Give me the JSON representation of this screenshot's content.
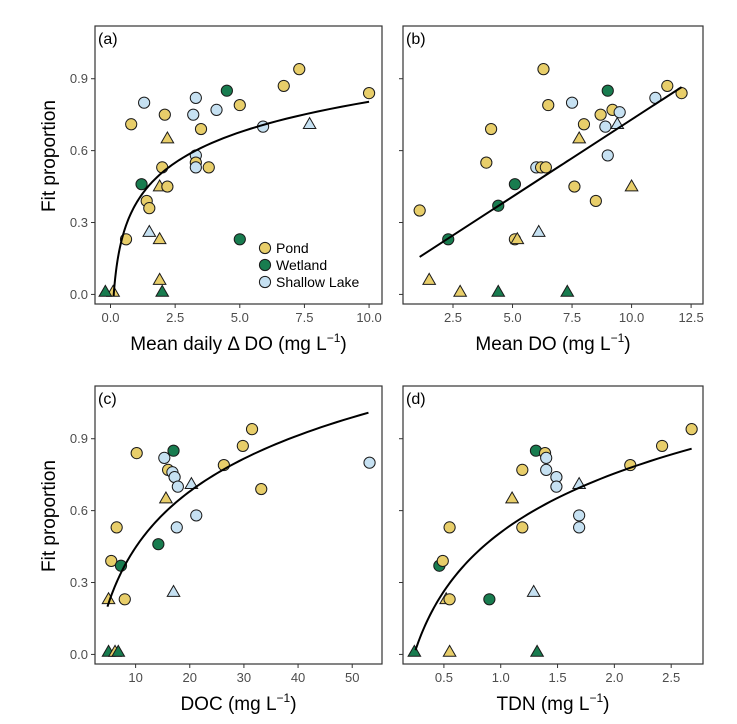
{
  "figure": {
    "shared_ylabel": "Fit proportion",
    "colors": {
      "Pond": "#E8CE6A",
      "Wetland": "#187C4F",
      "Shallow Lake": "#C6E1F2",
      "stroke": "#1a1a1a",
      "fit": "#000000"
    }
  },
  "legend": {
    "entries": [
      "Pond",
      "Wetland",
      "Shallow Lake"
    ]
  },
  "chart_data": [
    {
      "type": "scatter",
      "panel": "(a)",
      "xlabel_main": "Mean daily Δ DO (mg L",
      "xlabel_sup": "−1",
      "xlabel_end": ")",
      "ylabel": "Fit proportion",
      "xlim": [
        -0.6,
        10.5
      ],
      "ylim": [
        -0.04,
        1.12
      ],
      "xticks": [
        0.0,
        2.5,
        5.0,
        7.5,
        10.0
      ],
      "xtick_labels": [
        "0.0",
        "2.5",
        "5.0",
        "7.5",
        "10.0"
      ],
      "yticks": [
        0.0,
        0.3,
        0.6,
        0.9
      ],
      "ytick_labels": [
        "0.0",
        "0.3",
        "0.6",
        "0.9"
      ],
      "fit": {
        "type": "log",
        "x_start": 0.12,
        "x_end": 10.0,
        "a": 0.0,
        "b": 0.1
      },
      "points": [
        {
          "x": 0.6,
          "y": 0.23,
          "g": "Pond",
          "s": "circle"
        },
        {
          "x": 0.8,
          "y": 0.71,
          "g": "Pond",
          "s": "circle"
        },
        {
          "x": 1.3,
          "y": 0.8,
          "g": "Shallow Lake",
          "s": "circle"
        },
        {
          "x": 1.4,
          "y": 0.39,
          "g": "Pond",
          "s": "circle"
        },
        {
          "x": 1.5,
          "y": 0.36,
          "g": "Pond",
          "s": "circle"
        },
        {
          "x": 1.2,
          "y": 0.46,
          "g": "Wetland",
          "s": "circle"
        },
        {
          "x": 1.5,
          "y": 0.26,
          "g": "Shallow Lake",
          "s": "triangle"
        },
        {
          "x": 1.9,
          "y": 0.23,
          "g": "Pond",
          "s": "triangle"
        },
        {
          "x": 1.9,
          "y": 0.45,
          "g": "Pond",
          "s": "triangle"
        },
        {
          "x": 2.0,
          "y": 0.53,
          "g": "Pond",
          "s": "circle"
        },
        {
          "x": 2.1,
          "y": 0.75,
          "g": "Pond",
          "s": "circle"
        },
        {
          "x": 2.2,
          "y": 0.65,
          "g": "Pond",
          "s": "triangle"
        },
        {
          "x": 2.2,
          "y": 0.45,
          "g": "Pond",
          "s": "circle"
        },
        {
          "x": 1.9,
          "y": 0.06,
          "g": "Pond",
          "s": "triangle"
        },
        {
          "x": 2.0,
          "y": 0.01,
          "g": "Wetland",
          "s": "triangle"
        },
        {
          "x": 0.1,
          "y": 0.01,
          "g": "Pond",
          "s": "triangle"
        },
        {
          "x": -0.2,
          "y": 0.01,
          "g": "Wetland",
          "s": "triangle"
        },
        {
          "x": 3.2,
          "y": 0.75,
          "g": "Shallow Lake",
          "s": "circle"
        },
        {
          "x": 3.3,
          "y": 0.82,
          "g": "Shallow Lake",
          "s": "circle"
        },
        {
          "x": 3.3,
          "y": 0.58,
          "g": "Shallow Lake",
          "s": "circle"
        },
        {
          "x": 3.3,
          "y": 0.55,
          "g": "Pond",
          "s": "circle"
        },
        {
          "x": 3.3,
          "y": 0.53,
          "g": "Shallow Lake",
          "s": "circle"
        },
        {
          "x": 3.5,
          "y": 0.69,
          "g": "Pond",
          "s": "circle"
        },
        {
          "x": 3.8,
          "y": 0.53,
          "g": "Pond",
          "s": "circle"
        },
        {
          "x": 4.1,
          "y": 0.77,
          "g": "Shallow Lake",
          "s": "circle"
        },
        {
          "x": 4.5,
          "y": 0.85,
          "g": "Wetland",
          "s": "circle"
        },
        {
          "x": 5.0,
          "y": 0.79,
          "g": "Pond",
          "s": "circle"
        },
        {
          "x": 5.0,
          "y": 0.23,
          "g": "Wetland",
          "s": "circle"
        },
        {
          "x": 5.9,
          "y": 0.7,
          "g": "Shallow Lake",
          "s": "circle"
        },
        {
          "x": 6.7,
          "y": 0.87,
          "g": "Pond",
          "s": "circle"
        },
        {
          "x": 7.3,
          "y": 0.94,
          "g": "Pond",
          "s": "circle"
        },
        {
          "x": 7.7,
          "y": 0.71,
          "g": "Shallow Lake",
          "s": "triangle"
        },
        {
          "x": 10.0,
          "y": 0.84,
          "g": "Pond",
          "s": "circle"
        }
      ]
    },
    {
      "type": "scatter",
      "panel": "(b)",
      "xlabel_main": "Mean DO (mg L",
      "xlabel_sup": "−1",
      "xlabel_end": ")",
      "ylabel": "",
      "xlim": [
        0.4,
        13.0
      ],
      "ylim": [
        -0.04,
        1.12
      ],
      "xticks": [
        2.5,
        5.0,
        7.5,
        10.0,
        12.5
      ],
      "xtick_labels": [
        "2.5",
        "5.0",
        "7.5",
        "10.0",
        "12.5"
      ],
      "yticks": [
        0.0,
        0.3,
        0.6,
        0.9
      ],
      "ytick_labels": [
        "0.0",
        "0.3",
        "0.6",
        "0.9"
      ],
      "fit": {
        "type": "linear",
        "x_start": 1.1,
        "x_end": 12.1,
        "a": 0.0,
        "b": 0.0
      },
      "points": [
        {
          "x": 1.1,
          "y": 0.35,
          "g": "Pond",
          "s": "circle"
        },
        {
          "x": 1.5,
          "y": 0.06,
          "g": "Pond",
          "s": "triangle"
        },
        {
          "x": 2.3,
          "y": 0.23,
          "g": "Wetland",
          "s": "circle"
        },
        {
          "x": 2.8,
          "y": 0.01,
          "g": "Pond",
          "s": "triangle"
        },
        {
          "x": 3.9,
          "y": 0.55,
          "g": "Pond",
          "s": "circle"
        },
        {
          "x": 4.1,
          "y": 0.69,
          "g": "Pond",
          "s": "circle"
        },
        {
          "x": 4.4,
          "y": 0.37,
          "g": "Wetland",
          "s": "circle"
        },
        {
          "x": 4.4,
          "y": 0.01,
          "g": "Wetland",
          "s": "triangle"
        },
        {
          "x": 5.1,
          "y": 0.23,
          "g": "Pond",
          "s": "circle"
        },
        {
          "x": 5.2,
          "y": 0.23,
          "g": "Pond",
          "s": "triangle"
        },
        {
          "x": 5.1,
          "y": 0.46,
          "g": "Wetland",
          "s": "circle"
        },
        {
          "x": 6.0,
          "y": 0.53,
          "g": "Shallow Lake",
          "s": "circle"
        },
        {
          "x": 6.2,
          "y": 0.53,
          "g": "Pond",
          "s": "circle"
        },
        {
          "x": 6.4,
          "y": 0.53,
          "g": "Pond",
          "s": "circle"
        },
        {
          "x": 6.3,
          "y": 0.94,
          "g": "Pond",
          "s": "circle"
        },
        {
          "x": 6.5,
          "y": 0.79,
          "g": "Pond",
          "s": "circle"
        },
        {
          "x": 6.1,
          "y": 0.26,
          "g": "Shallow Lake",
          "s": "triangle"
        },
        {
          "x": 7.3,
          "y": 0.01,
          "g": "Wetland",
          "s": "triangle"
        },
        {
          "x": 7.5,
          "y": 0.8,
          "g": "Shallow Lake",
          "s": "circle"
        },
        {
          "x": 7.6,
          "y": 0.45,
          "g": "Pond",
          "s": "circle"
        },
        {
          "x": 7.8,
          "y": 0.65,
          "g": "Pond",
          "s": "triangle"
        },
        {
          "x": 8.0,
          "y": 0.71,
          "g": "Pond",
          "s": "circle"
        },
        {
          "x": 8.5,
          "y": 0.39,
          "g": "Pond",
          "s": "circle"
        },
        {
          "x": 8.7,
          "y": 0.75,
          "g": "Pond",
          "s": "circle"
        },
        {
          "x": 8.9,
          "y": 0.7,
          "g": "Shallow Lake",
          "s": "circle"
        },
        {
          "x": 9.0,
          "y": 0.58,
          "g": "Shallow Lake",
          "s": "circle"
        },
        {
          "x": 9.0,
          "y": 0.85,
          "g": "Wetland",
          "s": "circle"
        },
        {
          "x": 9.2,
          "y": 0.77,
          "g": "Pond",
          "s": "circle"
        },
        {
          "x": 9.5,
          "y": 0.76,
          "g": "Shallow Lake",
          "s": "circle"
        },
        {
          "x": 9.4,
          "y": 0.71,
          "g": "Shallow Lake",
          "s": "triangle"
        },
        {
          "x": 10.0,
          "y": 0.45,
          "g": "Pond",
          "s": "triangle"
        },
        {
          "x": 11.0,
          "y": 0.82,
          "g": "Shallow Lake",
          "s": "circle"
        },
        {
          "x": 11.5,
          "y": 0.87,
          "g": "Pond",
          "s": "circle"
        },
        {
          "x": 12.1,
          "y": 0.84,
          "g": "Pond",
          "s": "circle"
        }
      ]
    },
    {
      "type": "scatter",
      "panel": "(c)",
      "xlabel_main": "DOC (mg L",
      "xlabel_sup": "−1",
      "xlabel_end": ")",
      "ylabel": "Fit proportion",
      "xlim": [
        2.5,
        55.5
      ],
      "ylim": [
        -0.04,
        1.12
      ],
      "xticks": [
        10,
        20,
        30,
        40,
        50
      ],
      "xtick_labels": [
        "10",
        "20",
        "30",
        "40",
        "50"
      ],
      "yticks": [
        0.0,
        0.3,
        0.6,
        0.9
      ],
      "ytick_labels": [
        "0.0",
        "0.3",
        "0.6",
        "0.9"
      ],
      "fit": {
        "type": "log",
        "x_start": 4.8,
        "x_end": 53.0,
        "a": 0.0,
        "b": 0.0
      },
      "points": [
        {
          "x": 5.0,
          "y": 0.23,
          "g": "Pond",
          "s": "triangle"
        },
        {
          "x": 5.0,
          "y": 0.01,
          "g": "Wetland",
          "s": "triangle"
        },
        {
          "x": 5.5,
          "y": 0.39,
          "g": "Pond",
          "s": "circle"
        },
        {
          "x": 6.2,
          "y": 0.01,
          "g": "Pond",
          "s": "triangle"
        },
        {
          "x": 6.8,
          "y": 0.01,
          "g": "Wetland",
          "s": "triangle"
        },
        {
          "x": 6.5,
          "y": 0.53,
          "g": "Pond",
          "s": "circle"
        },
        {
          "x": 7.3,
          "y": 0.37,
          "g": "Wetland",
          "s": "circle"
        },
        {
          "x": 8.0,
          "y": 0.23,
          "g": "Pond",
          "s": "circle"
        },
        {
          "x": 10.2,
          "y": 0.84,
          "g": "Pond",
          "s": "circle"
        },
        {
          "x": 14.2,
          "y": 0.46,
          "g": "Wetland",
          "s": "circle"
        },
        {
          "x": 15.3,
          "y": 0.82,
          "g": "Shallow Lake",
          "s": "circle"
        },
        {
          "x": 15.6,
          "y": 0.65,
          "g": "Pond",
          "s": "triangle"
        },
        {
          "x": 16.0,
          "y": 0.77,
          "g": "Pond",
          "s": "circle"
        },
        {
          "x": 16.8,
          "y": 0.76,
          "g": "Shallow Lake",
          "s": "circle"
        },
        {
          "x": 17.0,
          "y": 0.85,
          "g": "Wetland",
          "s": "circle"
        },
        {
          "x": 17.2,
          "y": 0.74,
          "g": "Shallow Lake",
          "s": "circle"
        },
        {
          "x": 17.8,
          "y": 0.7,
          "g": "Shallow Lake",
          "s": "circle"
        },
        {
          "x": 17.0,
          "y": 0.26,
          "g": "Shallow Lake",
          "s": "triangle"
        },
        {
          "x": 17.6,
          "y": 0.53,
          "g": "Shallow Lake",
          "s": "circle"
        },
        {
          "x": 20.3,
          "y": 0.71,
          "g": "Shallow Lake",
          "s": "triangle"
        },
        {
          "x": 21.2,
          "y": 0.58,
          "g": "Shallow Lake",
          "s": "circle"
        },
        {
          "x": 26.3,
          "y": 0.79,
          "g": "Pond",
          "s": "circle"
        },
        {
          "x": 29.8,
          "y": 0.87,
          "g": "Pond",
          "s": "circle"
        },
        {
          "x": 31.5,
          "y": 0.94,
          "g": "Pond",
          "s": "circle"
        },
        {
          "x": 33.2,
          "y": 0.69,
          "g": "Pond",
          "s": "circle"
        },
        {
          "x": 53.2,
          "y": 0.8,
          "g": "Shallow Lake",
          "s": "circle"
        }
      ]
    },
    {
      "type": "scatter",
      "panel": "(d)",
      "xlabel_main": "TDN (mg L",
      "xlabel_sup": "−1",
      "xlabel_end": ")",
      "ylabel": "",
      "xlim": [
        0.14,
        2.78
      ],
      "ylim": [
        -0.04,
        1.12
      ],
      "xticks": [
        0.5,
        1.0,
        1.5,
        2.0,
        2.5
      ],
      "xtick_labels": [
        "0.5",
        "1.0",
        "1.5",
        "2.0",
        "2.5"
      ],
      "yticks": [
        0.0,
        0.3,
        0.6,
        0.9
      ],
      "ytick_labels": [
        "0.0",
        "0.3",
        "0.6",
        "0.9"
      ],
      "fit": {
        "type": "log",
        "x_start": 0.25,
        "x_end": 2.68,
        "a": 0.0,
        "b": 0.0
      },
      "points": [
        {
          "x": 0.24,
          "y": 0.01,
          "g": "Wetland",
          "s": "triangle"
        },
        {
          "x": 0.46,
          "y": 0.37,
          "g": "Wetland",
          "s": "circle"
        },
        {
          "x": 0.49,
          "y": 0.39,
          "g": "Pond",
          "s": "circle"
        },
        {
          "x": 0.52,
          "y": 0.23,
          "g": "Pond",
          "s": "triangle"
        },
        {
          "x": 0.55,
          "y": 0.23,
          "g": "Pond",
          "s": "circle"
        },
        {
          "x": 0.55,
          "y": 0.53,
          "g": "Pond",
          "s": "circle"
        },
        {
          "x": 0.55,
          "y": 0.01,
          "g": "Pond",
          "s": "triangle"
        },
        {
          "x": 0.9,
          "y": 0.23,
          "g": "Wetland",
          "s": "circle"
        },
        {
          "x": 1.1,
          "y": 0.65,
          "g": "Pond",
          "s": "triangle"
        },
        {
          "x": 1.19,
          "y": 0.77,
          "g": "Pond",
          "s": "circle"
        },
        {
          "x": 1.19,
          "y": 0.53,
          "g": "Pond",
          "s": "circle"
        },
        {
          "x": 1.29,
          "y": 0.26,
          "g": "Shallow Lake",
          "s": "triangle"
        },
        {
          "x": 1.31,
          "y": 0.85,
          "g": "Wetland",
          "s": "circle"
        },
        {
          "x": 1.32,
          "y": 0.01,
          "g": "Wetland",
          "s": "triangle"
        },
        {
          "x": 1.39,
          "y": 0.84,
          "g": "Pond",
          "s": "circle"
        },
        {
          "x": 1.4,
          "y": 0.82,
          "g": "Shallow Lake",
          "s": "circle"
        },
        {
          "x": 1.4,
          "y": 0.77,
          "g": "Shallow Lake",
          "s": "circle"
        },
        {
          "x": 1.49,
          "y": 0.74,
          "g": "Shallow Lake",
          "s": "circle"
        },
        {
          "x": 1.49,
          "y": 0.7,
          "g": "Shallow Lake",
          "s": "circle"
        },
        {
          "x": 1.69,
          "y": 0.71,
          "g": "Shallow Lake",
          "s": "triangle"
        },
        {
          "x": 1.69,
          "y": 0.58,
          "g": "Shallow Lake",
          "s": "circle"
        },
        {
          "x": 1.69,
          "y": 0.53,
          "g": "Shallow Lake",
          "s": "circle"
        },
        {
          "x": 2.14,
          "y": 0.79,
          "g": "Pond",
          "s": "circle"
        },
        {
          "x": 2.42,
          "y": 0.87,
          "g": "Pond",
          "s": "circle"
        },
        {
          "x": 2.68,
          "y": 0.94,
          "g": "Pond",
          "s": "circle"
        }
      ]
    }
  ]
}
